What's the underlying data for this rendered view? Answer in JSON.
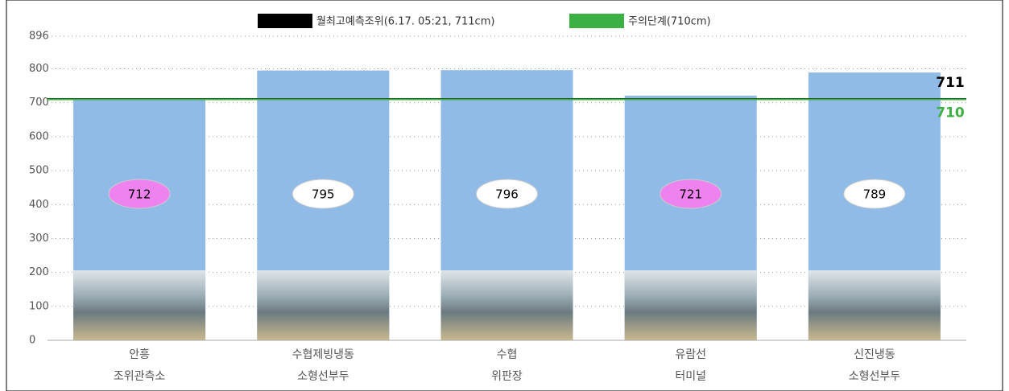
{
  "chart_data": {
    "type": "bar",
    "categories": [
      [
        "안흥",
        "조위관측소"
      ],
      [
        "수협제빙냉동",
        "소형선부두"
      ],
      [
        "수협",
        "위판장"
      ],
      [
        "유람선",
        "터미널"
      ],
      [
        "신진냉동",
        "소형선부두"
      ]
    ],
    "values": [
      712,
      795,
      796,
      721,
      789
    ],
    "color": "#8fbbe6",
    "value_label_colors": [
      "#ee82ee",
      "#ffffff",
      "#ffffff",
      "#ee82ee",
      "#ffffff"
    ],
    "ylim": [
      0,
      896
    ],
    "yticks": [
      0,
      100,
      200,
      300,
      400,
      500,
      600,
      700,
      800,
      896
    ],
    "grid": true,
    "reference_lines": [
      {
        "name": "월최고예측조위(6.17. 05:21, 711cm)",
        "color": "#000000",
        "value": 711
      },
      {
        "name": "주의단계(710cm)",
        "color": "#3cb043",
        "value": 710
      }
    ]
  }
}
